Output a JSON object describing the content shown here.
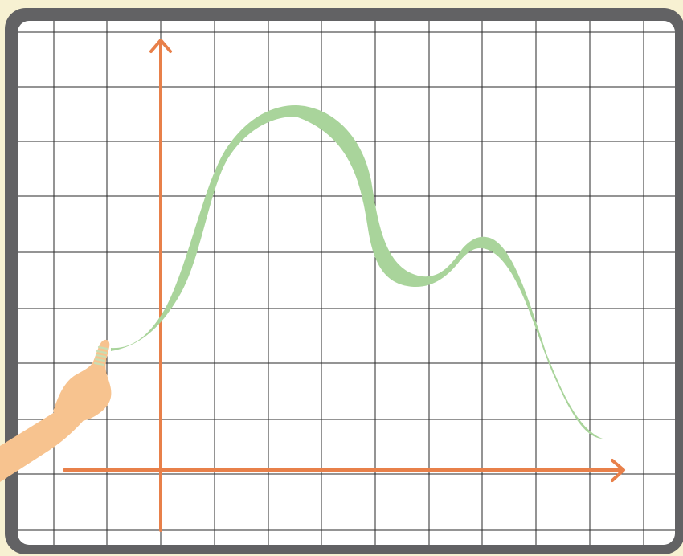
{
  "scene": {
    "description_free": true
  },
  "colors": {
    "background": "#f7f1d2",
    "board_frame": "#626264",
    "board_surface": "#ffffff",
    "grid_line": "#2a2a2a",
    "axis": "#e8804a",
    "curve": "#a9d49b",
    "skin": "#f7c38f",
    "finger_stripes": "#c9ddb2"
  },
  "icons": {
    "axis_arrow_up": "arrow-up-icon",
    "axis_arrow_right": "arrow-right-icon"
  }
}
